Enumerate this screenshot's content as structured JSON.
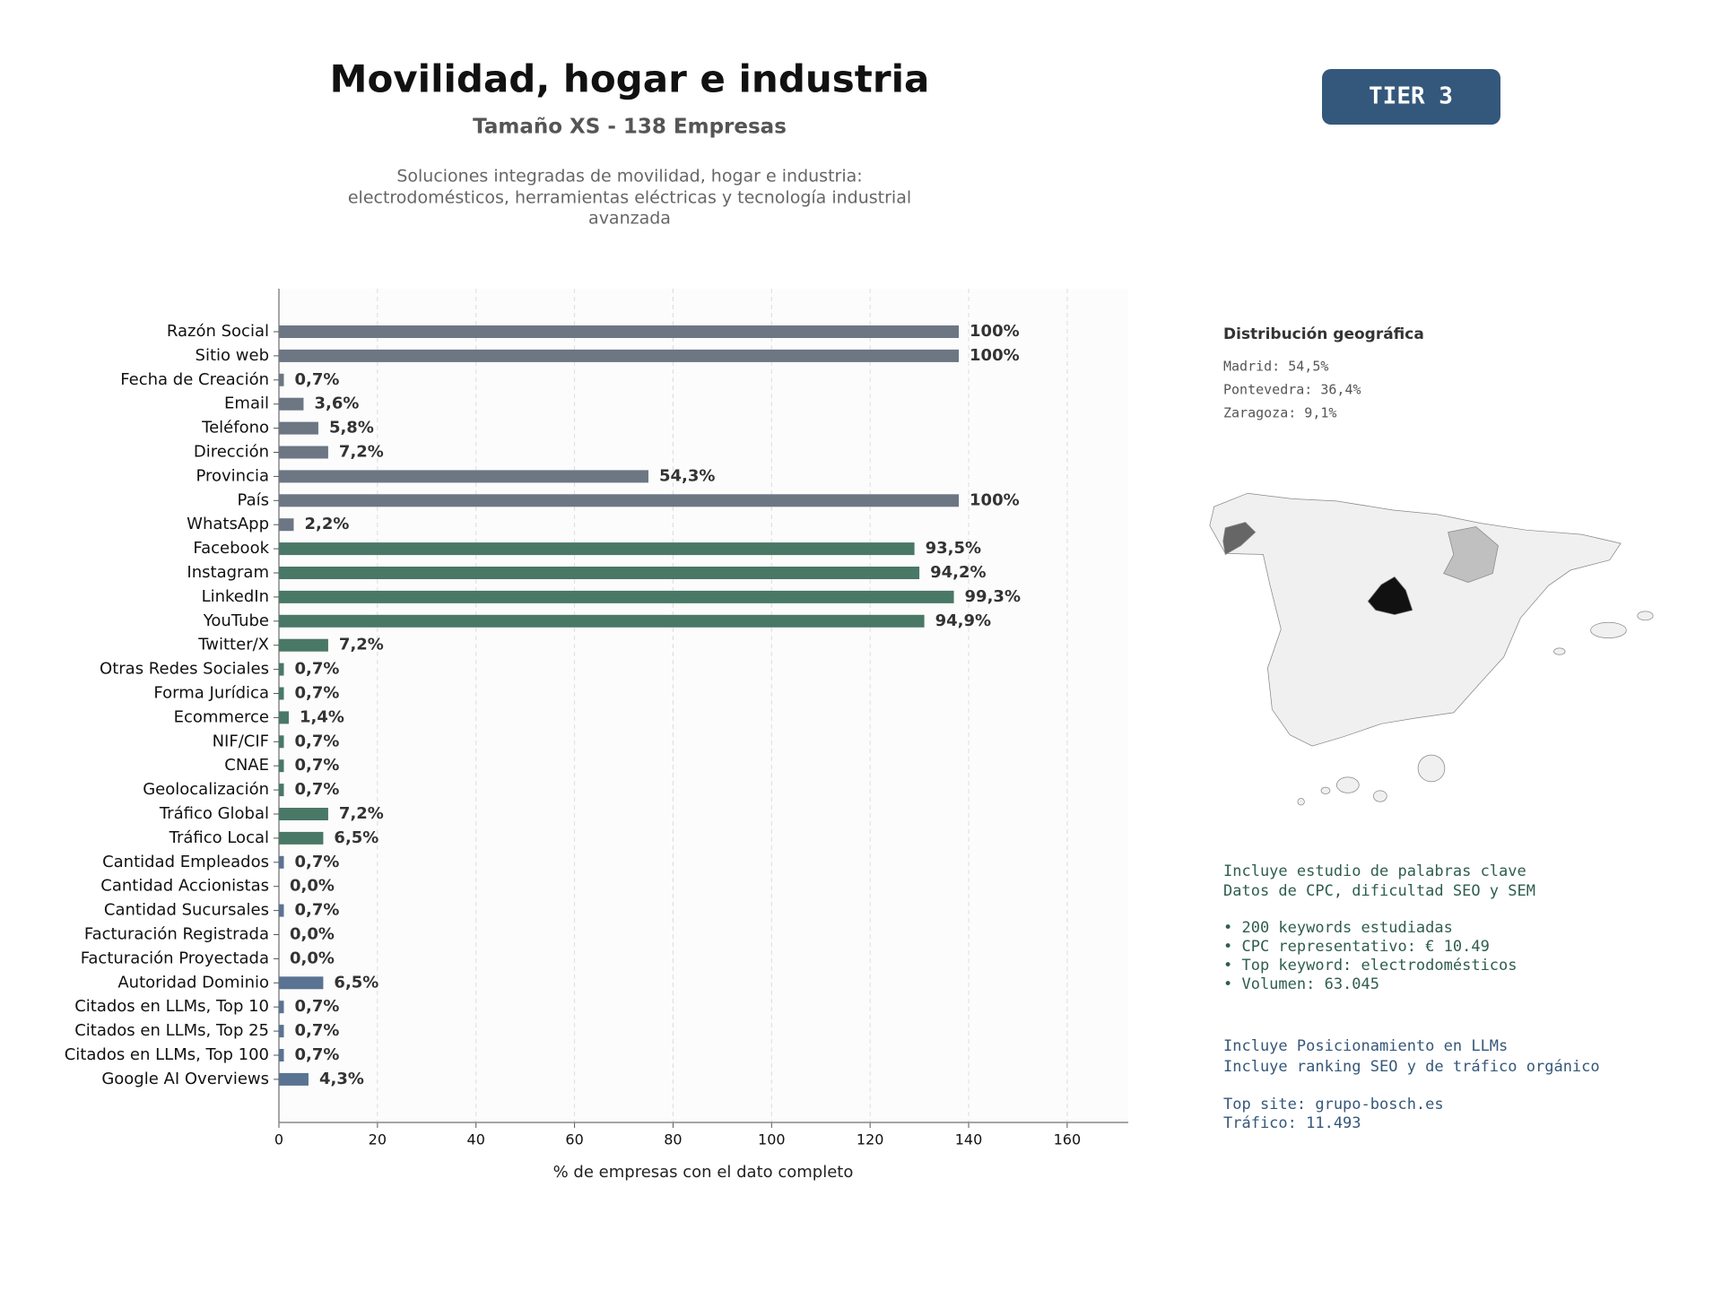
{
  "chart_data": {
    "type": "bar",
    "orientation": "horizontal",
    "title": "Movilidad, hogar e industria",
    "subtitle": "Tamaño XS - 138 Empresas",
    "description": [
      "Soluciones integradas de movilidad, hogar e industria:",
      "electrodomésticos, herramientas eléctricas y tecnología industrial",
      "avanzada"
    ],
    "badge": "TIER 3",
    "xlabel": "% de empresas con el dato completo",
    "categories": [
      "Razón Social",
      "Sitio web",
      "Fecha de Creación",
      "Email",
      "Teléfono",
      "Dirección",
      "Provincia",
      "País",
      "WhatsApp",
      "Facebook",
      "Instagram",
      "LinkedIn",
      "YouTube",
      "Twitter/X",
      "Otras Redes Sociales",
      "Forma Jurídica",
      "Ecommerce",
      "NIF/CIF",
      "CNAE",
      "Geolocalización",
      "Tráfico Global",
      "Tráfico Local",
      "Cantidad Empleados",
      "Cantidad Accionistas",
      "Cantidad Sucursales",
      "Facturación Registrada",
      "Facturación Proyectada",
      "Autoridad Dominio",
      "Citados en LLMs, Top 10",
      "Citados en LLMs, Top 25",
      "Citados en LLMs, Top 100",
      "Google AI Overviews"
    ],
    "values": [
      138,
      138,
      1,
      5,
      8,
      10,
      75,
      138,
      3,
      129,
      130,
      137,
      131,
      10,
      1,
      1,
      2,
      1,
      1,
      1,
      10,
      9,
      1,
      0,
      1,
      0,
      0,
      9,
      1,
      1,
      1,
      6
    ],
    "value_labels": [
      "100%",
      "100%",
      "0,7%",
      "3,6%",
      "5,8%",
      "7,2%",
      "54,3%",
      "100%",
      "2,2%",
      "93,5%",
      "94,2%",
      "99,3%",
      "94,9%",
      "7,2%",
      "0,7%",
      "0,7%",
      "1,4%",
      "0,7%",
      "0,7%",
      "0,7%",
      "7,2%",
      "6,5%",
      "0,7%",
      "0,0%",
      "0,7%",
      "0,0%",
      "0,0%",
      "6,5%",
      "0,7%",
      "0,7%",
      "0,7%",
      "4,3%"
    ],
    "colors": [
      "#6c7783",
      "#6c7783",
      "#6c7783",
      "#6c7783",
      "#6c7783",
      "#6c7783",
      "#6c7783",
      "#6c7783",
      "#6c7783",
      "#4a7866",
      "#4a7866",
      "#4a7866",
      "#4a7866",
      "#4a7866",
      "#4a7866",
      "#4a7866",
      "#4a7866",
      "#4a7866",
      "#4a7866",
      "#4a7866",
      "#4a7866",
      "#4a7866",
      "#5a7392",
      "#5a7392",
      "#5a7392",
      "#5a7392",
      "#5a7392",
      "#5a7392",
      "#5a7392",
      "#5a7392",
      "#5a7392",
      "#5a7392"
    ],
    "xlim": [
      0,
      172.4
    ],
    "xticks": [
      0,
      20,
      40,
      60,
      80,
      100,
      120,
      140,
      160
    ],
    "grid": true
  },
  "geo": {
    "title": "Distribución geográfica",
    "items": [
      "Madrid: 54,5%",
      "Pontevedra: 36,4%",
      "Zaragoza: 9,1%"
    ]
  },
  "keywords": {
    "lines": [
      "Incluye estudio de palabras clave",
      "Datos de CPC, dificultad SEO y SEM"
    ],
    "bullets": [
      "• 200 keywords estudiadas",
      "• CPC representativo: € 10.49",
      "• Top keyword: electrodomésticos",
      "• Volumen: 63.045"
    ]
  },
  "llm": {
    "lines": [
      "Incluye Posicionamiento en LLMs",
      "Incluye ranking SEO y de tráfico orgánico"
    ],
    "site": [
      "Top site: grupo-bosch.es",
      "Tráfico: 11.493"
    ]
  }
}
